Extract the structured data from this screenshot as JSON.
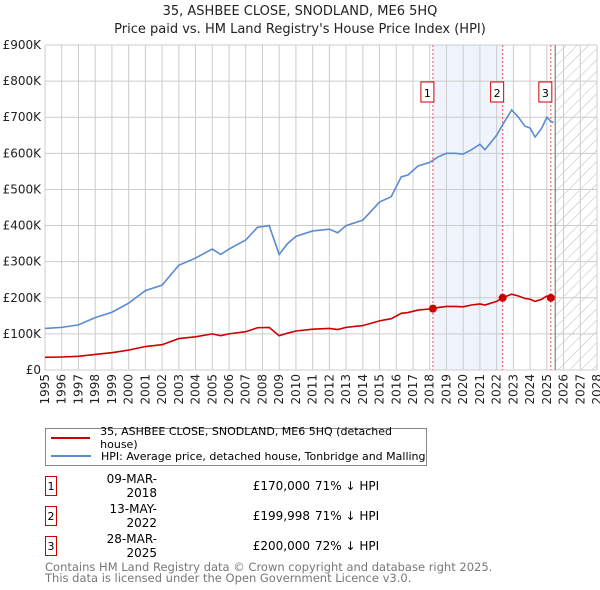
{
  "chart_data": {
    "type": "line",
    "title": "35, ASHBEE CLOSE, SNODLAND, ME6 5HQ",
    "subtitle": "Price paid vs. HM Land Registry's House Price Index (HPI)",
    "xlim": [
      1995,
      2028
    ],
    "ylim": [
      0,
      900000
    ],
    "yticks": [
      {
        "v": 0,
        "label": "£0"
      },
      {
        "v": 100000,
        "label": "£100K"
      },
      {
        "v": 200000,
        "label": "£200K"
      },
      {
        "v": 300000,
        "label": "£300K"
      },
      {
        "v": 400000,
        "label": "£400K"
      },
      {
        "v": 500000,
        "label": "£500K"
      },
      {
        "v": 600000,
        "label": "£600K"
      },
      {
        "v": 700000,
        "label": "£700K"
      },
      {
        "v": 800000,
        "label": "£800K"
      },
      {
        "v": 900000,
        "label": "£900K"
      }
    ],
    "xticks": [
      "1995",
      "1996",
      "1997",
      "1998",
      "1999",
      "2000",
      "2001",
      "2002",
      "2003",
      "2004",
      "2005",
      "2006",
      "2007",
      "2008",
      "2009",
      "2010",
      "2011",
      "2012",
      "2013",
      "2014",
      "2015",
      "2016",
      "2017",
      "2018",
      "2019",
      "2020",
      "2021",
      "2022",
      "2023",
      "2024",
      "2025",
      "2026",
      "2027",
      "2028"
    ],
    "grid": true,
    "forecast_start": 2025.5,
    "shaded_range": [
      2018.19,
      2022.36
    ],
    "series": [
      {
        "name": "35, ASHBEE CLOSE, SNODLAND, ME6 5HQ (detached house)",
        "color": "#cc0000",
        "x": [
          1995,
          1996,
          1997,
          1998,
          1999,
          2000,
          2001,
          2002,
          2003,
          2004,
          2005,
          2005.5,
          2006,
          2007,
          2007.7,
          2008.4,
          2009,
          2009.5,
          2010,
          2011,
          2012,
          2012.5,
          2013,
          2014,
          2015,
          2015.7,
          2016.3,
          2016.7,
          2017.3,
          2018.19,
          2018.5,
          2019,
          2019.5,
          2020,
          2020.5,
          2021,
          2021.3,
          2022,
          2022.36,
          2022.9,
          2023.3,
          2023.7,
          2024,
          2024.3,
          2024.7,
          2025,
          2025.24
        ],
        "y": [
          35000,
          36000,
          38000,
          43000,
          48000,
          55000,
          65000,
          70000,
          87000,
          92000,
          100000,
          95000,
          100000,
          106000,
          117000,
          118000,
          95000,
          102000,
          108000,
          113000,
          115000,
          112000,
          118000,
          123000,
          136000,
          142000,
          157000,
          159000,
          166000,
          170000,
          173000,
          176000,
          176000,
          175000,
          180000,
          183000,
          180000,
          190000,
          199998,
          210000,
          205000,
          198000,
          196000,
          190000,
          196000,
          205000,
          200000
        ]
      },
      {
        "name": "HPI: Average price, detached house, Tonbridge and Malling",
        "color": "#5b8bd0",
        "x": [
          1995,
          1996,
          1997,
          1998,
          1999,
          2000,
          2001,
          2002,
          2003,
          2004,
          2005,
          2005.5,
          2006,
          2007,
          2007.7,
          2008.4,
          2009,
          2009.5,
          2010,
          2011,
          2012,
          2012.5,
          2013,
          2014,
          2015,
          2015.7,
          2016.3,
          2016.7,
          2017.3,
          2018,
          2018.5,
          2019,
          2019.5,
          2020,
          2020.5,
          2021,
          2021.3,
          2022,
          2022.5,
          2022.9,
          2023.3,
          2023.7,
          2024,
          2024.3,
          2024.7,
          2025,
          2025.2,
          2025.4
        ],
        "y": [
          115000,
          118000,
          125000,
          145000,
          160000,
          185000,
          220000,
          235000,
          290000,
          310000,
          335000,
          320000,
          335000,
          360000,
          395000,
          400000,
          320000,
          350000,
          370000,
          385000,
          390000,
          380000,
          400000,
          415000,
          465000,
          480000,
          535000,
          540000,
          565000,
          575000,
          590000,
          600000,
          600000,
          598000,
          610000,
          625000,
          610000,
          650000,
          690000,
          720000,
          700000,
          675000,
          670000,
          645000,
          670000,
          700000,
          690000,
          685000
        ]
      }
    ],
    "sales": [
      {
        "n": "1",
        "x": 2018.19,
        "y": 170000,
        "date": "09-MAR-2018",
        "price": "£170,000",
        "hpi": "71% ↓ HPI"
      },
      {
        "n": "2",
        "x": 2022.36,
        "y": 199998,
        "date": "13-MAY-2022",
        "price": "£199,998",
        "hpi": "71% ↓ HPI"
      },
      {
        "n": "3",
        "x": 2025.24,
        "y": 200000,
        "date": "28-MAR-2025",
        "price": "£200,000",
        "hpi": "72% ↓ HPI"
      }
    ]
  },
  "footer": {
    "line1": "Contains HM Land Registry data © Crown copyright and database right 2025.",
    "line2": "This data is licensed under the Open Government Licence v3.0."
  }
}
